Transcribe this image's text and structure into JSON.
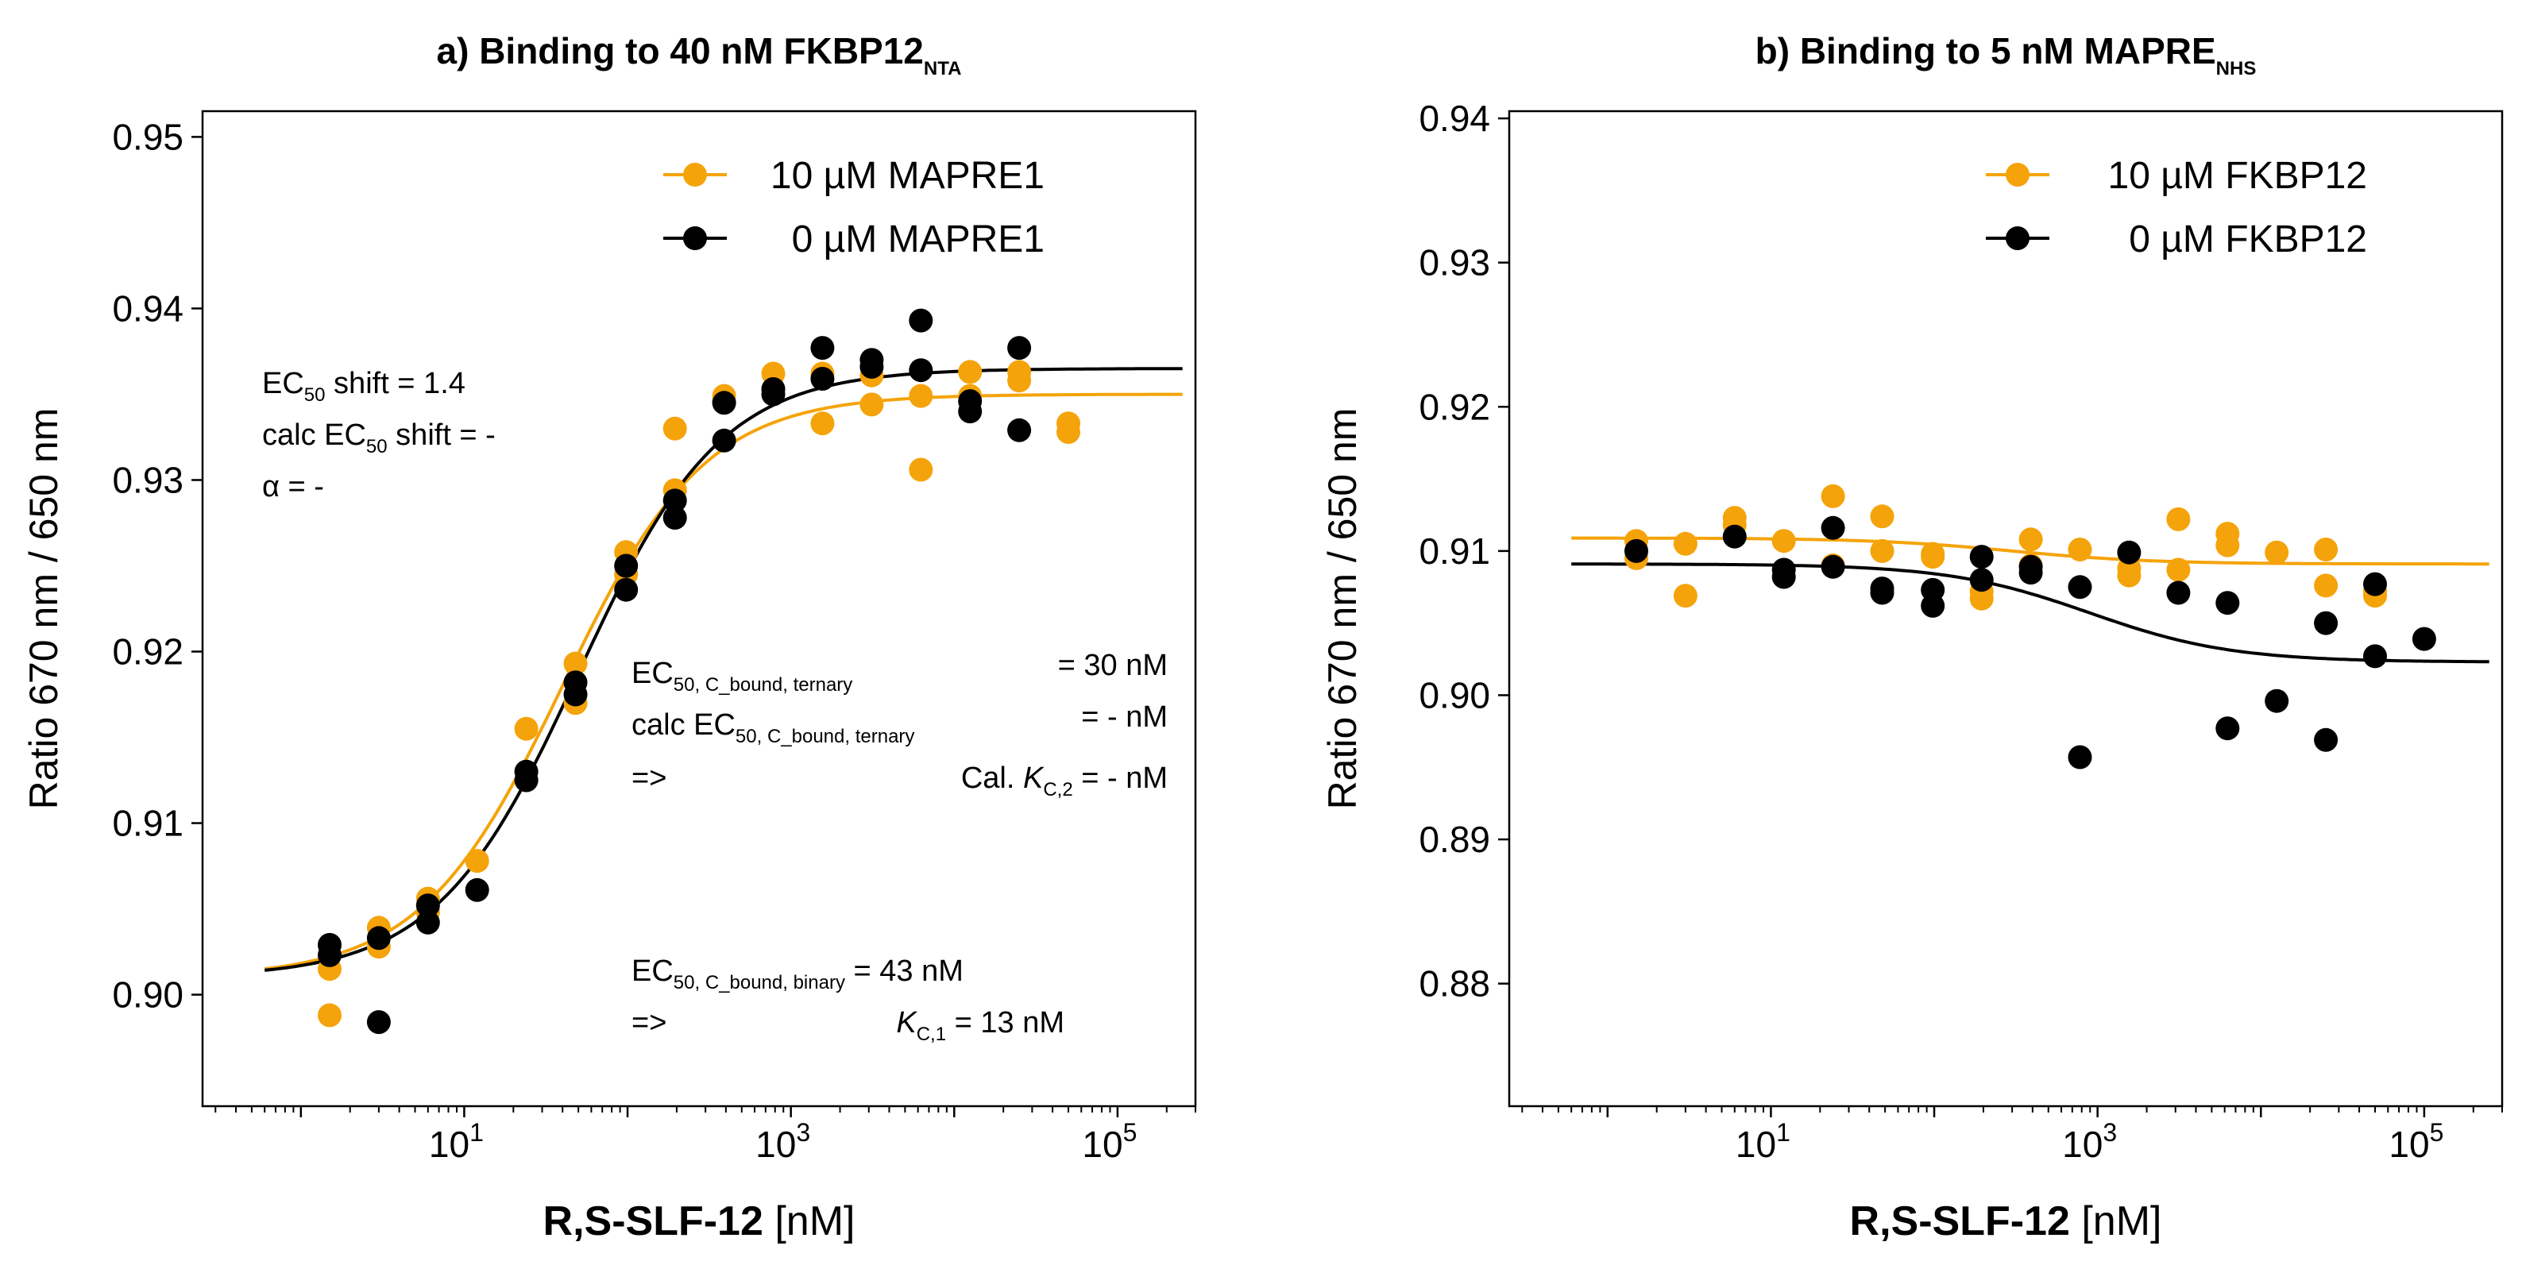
{
  "chart_data": [
    {
      "type": "scatter",
      "title": "a) Binding to 40 nM FKBP12",
      "title_sub": "NTA",
      "xlabel_bold": "R,S-SLF-12",
      "xlabel_unit": " [nM]",
      "ylabel": "Ratio 670 nm / 650 nm",
      "x_scale": "log",
      "xlim": [
        0.25,
        300000
      ],
      "ylim": [
        0.8935,
        0.9515
      ],
      "xticks": [
        10,
        1000,
        100000
      ],
      "xtick_labels": [
        "10",
        "10",
        "10"
      ],
      "xtick_exps": [
        "1",
        "3",
        "5"
      ],
      "yticks": [
        0.9,
        0.91,
        0.92,
        0.93,
        0.94,
        0.95
      ],
      "ytick_labels": [
        "0.90",
        "0.91",
        "0.92",
        "0.93",
        "0.94",
        "0.95"
      ],
      "legend_position": "top-right",
      "series": [
        {
          "name": "10 µM MAPRE1",
          "color": "#F5A30A",
          "x": [
            1.5,
            1.5,
            3,
            3,
            6,
            6,
            12,
            24,
            24,
            48,
            48,
            98,
            98,
            195,
            195,
            390,
            390,
            780,
            780,
            1560,
            1560,
            3125,
            3125,
            6250,
            6250,
            12500,
            12500,
            25000,
            25000,
            50000,
            50000
          ],
          "y": [
            0.9015,
            0.8988,
            0.9039,
            0.9028,
            0.9056,
            0.9048,
            0.9078,
            0.9155,
            0.9125,
            0.9193,
            0.917,
            0.9258,
            0.9245,
            0.933,
            0.9294,
            0.9349,
            0.9346,
            0.9362,
            0.9353,
            0.9362,
            0.9333,
            0.9361,
            0.9344,
            0.9349,
            0.9306,
            0.9363,
            0.9349,
            0.9358,
            0.9363,
            0.9333,
            0.9328
          ],
          "fit": {
            "bottom": 0.901,
            "top": 0.935,
            "ec50": 40,
            "hill": 1
          }
        },
        {
          "name": "0 µM MAPRE1",
          "color": "#000000",
          "x": [
            1.5,
            1.5,
            3,
            3,
            6,
            6,
            12,
            24,
            24,
            48,
            48,
            98,
            98,
            195,
            195,
            390,
            390,
            780,
            780,
            1560,
            1560,
            3125,
            3125,
            6250,
            6250,
            12500,
            12500,
            25000,
            25000
          ],
          "y": [
            0.9029,
            0.9023,
            0.9033,
            0.8984,
            0.9052,
            0.9042,
            0.9061,
            0.913,
            0.9125,
            0.9182,
            0.9175,
            0.925,
            0.9236,
            0.9288,
            0.9278,
            0.9345,
            0.9323,
            0.9353,
            0.935,
            0.9377,
            0.9359,
            0.937,
            0.9366,
            0.9393,
            0.9364,
            0.934,
            0.9346,
            0.9377,
            0.9329
          ],
          "fit": {
            "bottom": 0.901,
            "top": 0.9365,
            "ec50": 50,
            "hill": 1
          }
        }
      ],
      "annotations": [
        {
          "parts": [
            "EC",
            "50",
            " shift = 1.4"
          ]
        },
        {
          "parts": [
            "calc EC",
            "50",
            " shift = -"
          ]
        },
        {
          "parts": [
            "α = -"
          ]
        },
        {
          "parts": [
            "EC",
            "50, C_bound, ternary",
            "= 30 nM"
          ]
        },
        {
          "parts": [
            "calc EC",
            "50, C_bound, ternary",
            "=  -  nM"
          ]
        },
        {
          "parts": [
            "=>",
            "Cal. ",
            "K",
            "C,2",
            " =  -  nM"
          ]
        },
        {
          "parts": [
            "EC",
            "50, C_bound, binary",
            " = 43 nM"
          ]
        },
        {
          "parts": [
            "=>",
            "K",
            "C,1",
            " = 13 nM"
          ]
        }
      ]
    },
    {
      "type": "scatter",
      "title": "b) Binding to 5 nM MAPRE",
      "title_sub": "NHS",
      "xlabel_bold": "R,S-SLF-12",
      "xlabel_unit": " [nM]",
      "ylabel": "Ratio 670 nm / 650 nm",
      "x_scale": "log",
      "xlim": [
        0.25,
        300000
      ],
      "ylim": [
        0.8715,
        0.9405
      ],
      "xticks": [
        10,
        1000,
        100000
      ],
      "xtick_labels": [
        "10",
        "10",
        "10"
      ],
      "xtick_exps": [
        "1",
        "3",
        "5"
      ],
      "yticks": [
        0.88,
        0.89,
        0.9,
        0.91,
        0.92,
        0.93,
        0.94
      ],
      "ytick_labels": [
        "0.88",
        "0.89",
        "0.90",
        "0.91",
        "0.92",
        "0.93",
        "0.94"
      ],
      "legend_position": "top-right",
      "series": [
        {
          "name": "10 µM FKBP12",
          "color": "#F5A30A",
          "x": [
            1.5,
            1.5,
            3,
            3,
            6,
            6,
            12,
            24,
            24,
            48,
            48,
            98,
            98,
            195,
            195,
            390,
            390,
            780,
            1560,
            1560,
            3125,
            3125,
            6250,
            6250,
            12500,
            25000,
            25000,
            50000,
            50000
          ],
          "y": [
            0.9107,
            0.9095,
            0.9105,
            0.9069,
            0.9123,
            0.9118,
            0.9107,
            0.9138,
            0.909,
            0.9124,
            0.91,
            0.9098,
            0.9096,
            0.9072,
            0.9067,
            0.9108,
            0.909,
            0.9101,
            0.9088,
            0.9083,
            0.9122,
            0.9087,
            0.9112,
            0.9104,
            0.9099,
            0.9101,
            0.9076,
            0.9072,
            0.9069
          ],
          "fit": {
            "bottom": 0.9109,
            "top": 0.9091,
            "ec50": 300,
            "hill": 1
          }
        },
        {
          "name": "0 µM FKBP12",
          "color": "#000000",
          "x": [
            1.5,
            6,
            12,
            12,
            24,
            24,
            48,
            48,
            98,
            98,
            195,
            195,
            390,
            390,
            780,
            780,
            1560,
            3125,
            6250,
            6250,
            12500,
            25000,
            25000,
            50000,
            50000,
            100000
          ],
          "y": [
            0.91,
            0.911,
            0.9087,
            0.9082,
            0.9116,
            0.9089,
            0.9074,
            0.9071,
            0.9073,
            0.9062,
            0.9096,
            0.908,
            0.9089,
            0.9085,
            0.9075,
            0.8957,
            0.9099,
            0.9071,
            0.9064,
            0.8977,
            0.8996,
            0.905,
            0.8969,
            0.9077,
            0.9027,
            0.9039
          ],
          "fit": {
            "bottom": 0.9091,
            "top": 0.9023,
            "ec50": 900,
            "hill": 1
          }
        }
      ]
    }
  ]
}
